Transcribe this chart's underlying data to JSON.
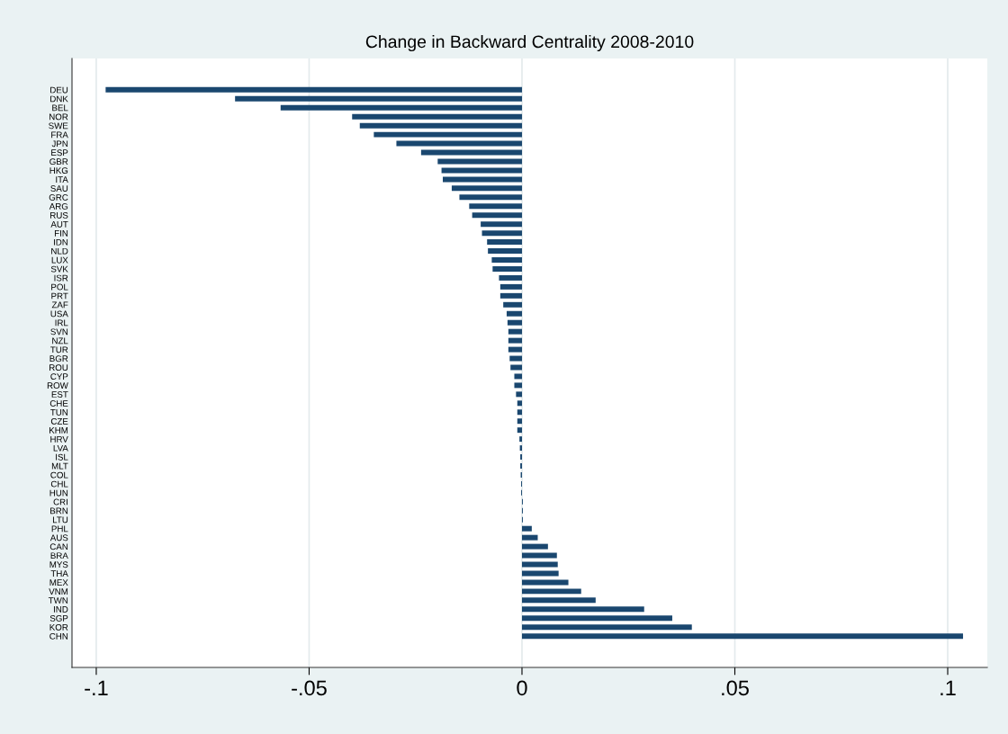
{
  "chart_data": {
    "type": "bar",
    "orientation": "horizontal",
    "title": "Change in Backward Centrality 2008-2010",
    "categories": [
      "DEU",
      "DNK",
      "BEL",
      "NOR",
      "SWE",
      "FRA",
      "JPN",
      "ESP",
      "GBR",
      "HKG",
      "ITA",
      "SAU",
      "GRC",
      "ARG",
      "RUS",
      "AUT",
      "FIN",
      "IDN",
      "NLD",
      "LUX",
      "SVK",
      "ISR",
      "POL",
      "PRT",
      "ZAF",
      "USA",
      "IRL",
      "SVN",
      "NZL",
      "TUR",
      "BGR",
      "ROU",
      "CYP",
      "ROW",
      "EST",
      "CHE",
      "TUN",
      "CZE",
      "KHM",
      "HRV",
      "LVA",
      "ISL",
      "MLT",
      "COL",
      "CHL",
      "HUN",
      "CRI",
      "BRN",
      "LTU",
      "PHL",
      "AUS",
      "CAN",
      "BRA",
      "MYS",
      "THA",
      "MEX",
      "VNM",
      "TWN",
      "IND",
      "SGP",
      "KOR",
      "CHN"
    ],
    "values": [
      -0.0978,
      -0.0674,
      -0.0567,
      -0.0399,
      -0.0381,
      -0.0348,
      -0.0295,
      -0.0237,
      -0.0198,
      -0.0189,
      -0.0186,
      -0.0165,
      -0.0147,
      -0.0124,
      -0.0117,
      -0.0097,
      -0.0094,
      -0.0082,
      -0.008,
      -0.0071,
      -0.0069,
      -0.0054,
      -0.0051,
      -0.0051,
      -0.0044,
      -0.0036,
      -0.0034,
      -0.0032,
      -0.0032,
      -0.0032,
      -0.0029,
      -0.0027,
      -0.0018,
      -0.0018,
      -0.0014,
      -0.0011,
      -0.0011,
      -0.0011,
      -0.0011,
      -0.0006,
      -0.0005,
      -0.0004,
      -0.0004,
      -0.0003,
      -0.0002,
      -0.0002,
      0.0002,
      0.0002,
      0.0002,
      0.0023,
      0.0037,
      0.0061,
      0.0082,
      0.0084,
      0.0086,
      0.0109,
      0.0139,
      0.0173,
      0.0287,
      0.0353,
      0.0399,
      0.1036
    ],
    "color": "#1a476f",
    "xlim": [
      -0.1057,
      0.1093
    ],
    "xticks": [
      {
        "value": -0.1,
        "label": "-.1"
      },
      {
        "value": -0.05,
        "label": "-.05"
      },
      0,
      {
        "value": 0.05,
        "label": ".05"
      },
      {
        "value": 0.1,
        "label": ".1"
      }
    ],
    "grid": "x"
  }
}
